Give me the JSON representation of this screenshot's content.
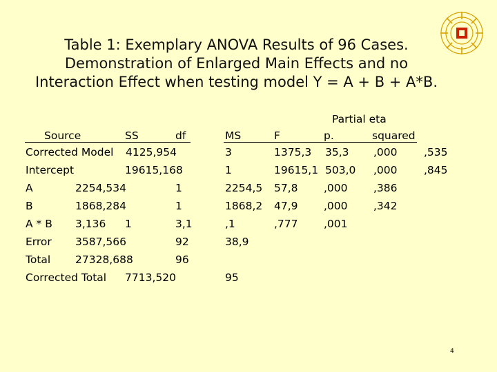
{
  "title": {
    "line1": "Table 1: Exemplary ANOVA Results of 96 Cases.",
    "line2": "Demonstration of Enlarged Main Effects and no",
    "line3": "Interaction Effect when testing model Y = A + B + A*B."
  },
  "header": {
    "partial_eta": "Partial eta",
    "source": "Source",
    "ss": "SS",
    "df": "df",
    "ms": "MS",
    "f": "F",
    "p": "p.",
    "squared": "squared"
  },
  "rows": [
    {
      "label": "Corrected Model",
      "ss": "4125,954",
      "ms": "3",
      "f": "1375,3",
      "p": "35,3",
      "sq": ",000",
      "extra": ",535"
    },
    {
      "label": "Intercept",
      "ss": "19615,168",
      "ms": "1",
      "f": "19615,1",
      "p": "503,0",
      "sq": ",000",
      "extra": ",845"
    },
    {
      "label": "A",
      "ss": "2254,534",
      "df": "1",
      "ms": "2254,5",
      "f": "57,8",
      "p": ",000",
      "sq": ",386"
    },
    {
      "label": "B",
      "ss": "1868,284",
      "df": "1",
      "ms": "1868,2",
      "f": "47,9",
      "p": ",000",
      "sq": ",342"
    },
    {
      "label": "A * B",
      "ss": "3,136",
      "df": "1",
      "df2": "3,1",
      "ms": ",1",
      "f": ",777",
      "p": ",001"
    },
    {
      "label": "Error",
      "ss": "3587,566",
      "df": "92",
      "ms": "38,9"
    },
    {
      "label": "Total",
      "ss": "27328,688",
      "df": "96"
    },
    {
      "label": "Corrected Total",
      "ss": "7713,520",
      "ms": "95"
    }
  ],
  "page_number": "4",
  "colors": {
    "background": "#ffffcc",
    "logo_red": "#cc2200",
    "logo_gold": "#d9a000"
  }
}
